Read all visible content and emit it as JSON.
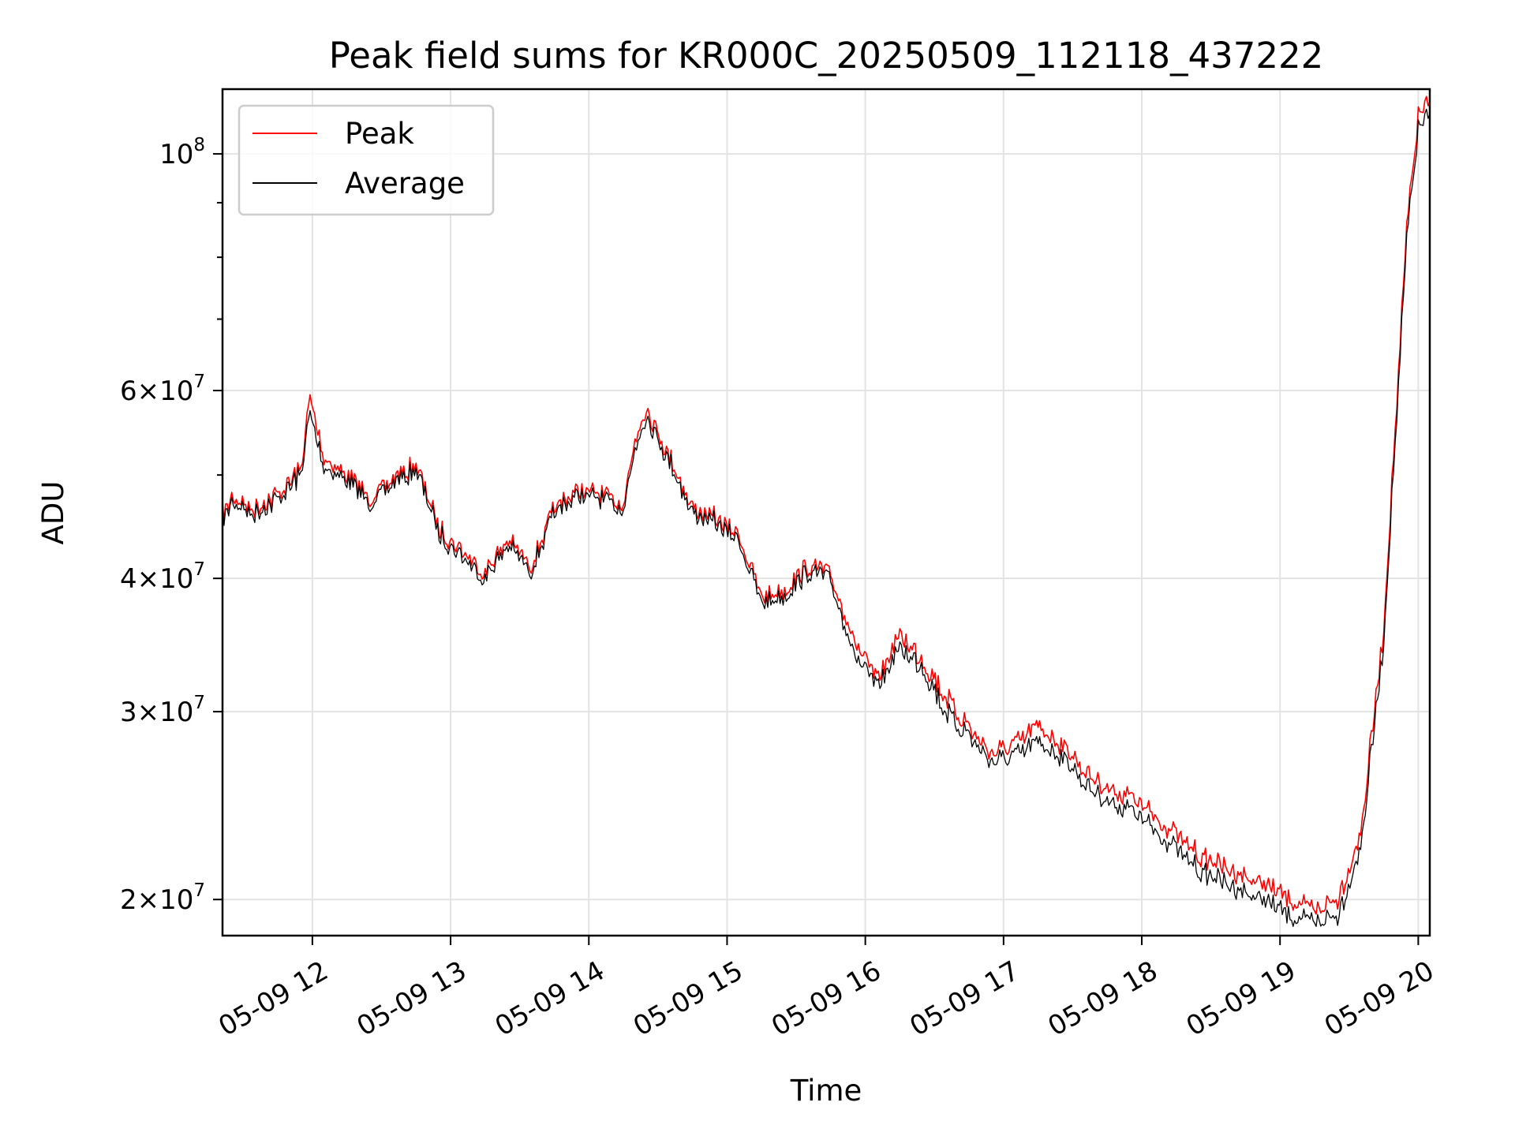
{
  "chart_data": {
    "type": "line",
    "title": "Peak field sums for KR000C_20250509_112118_437222",
    "xlabel": "Time",
    "ylabel": "ADU",
    "yscale": "log",
    "xlim": [
      "05-09 11:21",
      "05-09 20:05"
    ],
    "ylim": [
      18500000,
      115000000
    ],
    "grid": true,
    "legend_position": "upper-left",
    "x_ticks": [
      "05-09 12",
      "05-09 13",
      "05-09 14",
      "05-09 15",
      "05-09 16",
      "05-09 17",
      "05-09 18",
      "05-09 19",
      "05-09 20"
    ],
    "y_ticks": [
      {
        "value": 20000000,
        "mantissa": "2",
        "base": "10",
        "exponent": "7"
      },
      {
        "value": 30000000,
        "mantissa": "3",
        "base": "10",
        "exponent": "7"
      },
      {
        "value": 40000000,
        "mantissa": "4",
        "base": "10",
        "exponent": "7"
      },
      {
        "value": 60000000,
        "mantissa": "6",
        "base": "10",
        "exponent": "7"
      },
      {
        "value": 100000000,
        "mantissa": "",
        "base": "10",
        "exponent": "8"
      }
    ],
    "x": [
      "05-09 11:21",
      "05-09 11:25",
      "05-09 11:35",
      "05-09 11:45",
      "05-09 11:55",
      "05-09 11:59",
      "05-09 12:05",
      "05-09 12:15",
      "05-09 12:25",
      "05-09 12:35",
      "05-09 12:45",
      "05-09 12:55",
      "05-09 13:05",
      "05-09 13:15",
      "05-09 13:25",
      "05-09 13:35",
      "05-09 13:45",
      "05-09 13:55",
      "05-09 14:05",
      "05-09 14:15",
      "05-09 14:20",
      "05-09 14:25",
      "05-09 14:35",
      "05-09 14:45",
      "05-09 14:55",
      "05-09 15:05",
      "05-09 15:15",
      "05-09 15:25",
      "05-09 15:35",
      "05-09 15:45",
      "05-09 15:55",
      "05-09 16:05",
      "05-09 16:15",
      "05-09 16:25",
      "05-09 16:35",
      "05-09 16:45",
      "05-09 16:55",
      "05-09 17:05",
      "05-09 17:15",
      "05-09 17:25",
      "05-09 17:35",
      "05-09 17:45",
      "05-09 17:55",
      "05-09 18:05",
      "05-09 18:15",
      "05-09 18:25",
      "05-09 18:35",
      "05-09 18:45",
      "05-09 18:55",
      "05-09 19:05",
      "05-09 19:15",
      "05-09 19:25",
      "05-09 19:35",
      "05-09 19:45",
      "05-09 19:50",
      "05-09 19:55",
      "05-09 20:00",
      "05-09 20:05"
    ],
    "series": [
      {
        "name": "Peak",
        "color": "#ff0000",
        "values": [
          46000000,
          47500000,
          46500000,
          48000000,
          50500000,
          59000000,
          52000000,
          50000000,
          47500000,
          49500000,
          51000000,
          44500000,
          42500000,
          40500000,
          43500000,
          41000000,
          46500000,
          48500000,
          48000000,
          47000000,
          54000000,
          58000000,
          52000000,
          46500000,
          45500000,
          44000000,
          38500000,
          39000000,
          41000000,
          40500000,
          35000000,
          32000000,
          35500000,
          33500000,
          31000000,
          29000000,
          27500000,
          28000000,
          29000000,
          28000000,
          26500000,
          25500000,
          25000000,
          24000000,
          23000000,
          22000000,
          21500000,
          21000000,
          20500000,
          20000000,
          19500000,
          20000000,
          23000000,
          36000000,
          55000000,
          85000000,
          108000000,
          112000000
        ]
      },
      {
        "name": "Average",
        "color": "#000000",
        "values": [
          45500000,
          47000000,
          46000000,
          47500000,
          50000000,
          57000000,
          51000000,
          49500000,
          47000000,
          49000000,
          50500000,
          44000000,
          42000000,
          40000000,
          43000000,
          40500000,
          46000000,
          48000000,
          47500000,
          46500000,
          53000000,
          57000000,
          51500000,
          46000000,
          45000000,
          43500000,
          38000000,
          38500000,
          40500000,
          40000000,
          34000000,
          31500000,
          34500000,
          33000000,
          30000000,
          28500000,
          27000000,
          27300000,
          28000000,
          27300000,
          25800000,
          24800000,
          24300000,
          23300000,
          22300000,
          21300000,
          20800000,
          20300000,
          19800000,
          19300000,
          19000000,
          19300000,
          22300000,
          35000000,
          53500000,
          83000000,
          105000000,
          109000000
        ]
      }
    ]
  }
}
